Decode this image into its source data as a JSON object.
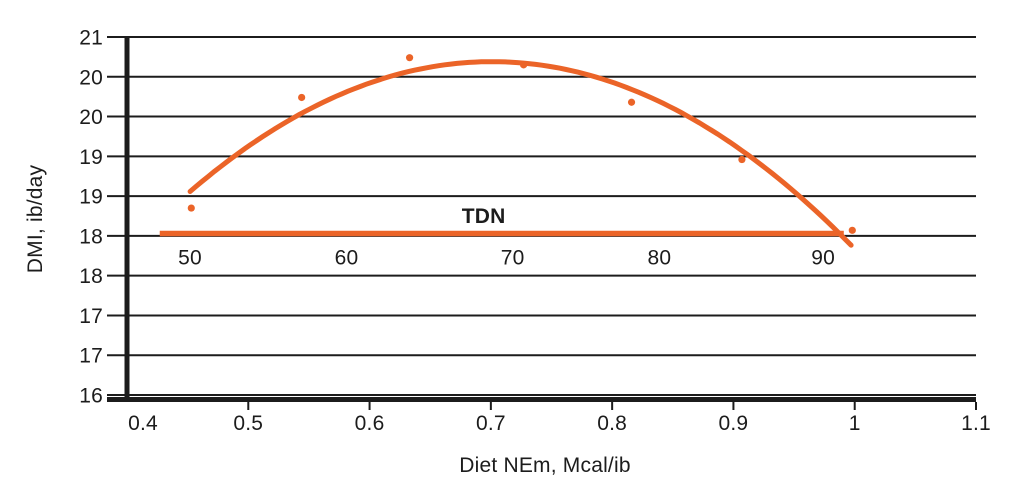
{
  "figure": {
    "background_color": "#ffffff",
    "accent_color": "#EB6428",
    "axis_color": "#1c1c1c",
    "y_axis": {
      "title": "DMI, ib/day",
      "tick_labels": [
        "21",
        "20",
        "20",
        "19",
        "19",
        "18",
        "18",
        "17",
        "17",
        "16"
      ],
      "tick_values": [
        21,
        20.5,
        20,
        19.5,
        19,
        18.5,
        18,
        17.5,
        17,
        16.5
      ]
    },
    "x_axis": {
      "title": "Diet NEm, Mcal/ib",
      "tick_labels": [
        "0.4",
        "0.5",
        "0.6",
        "0.7",
        "0.8",
        "0.9",
        "1",
        "1.1"
      ],
      "tick_values": [
        0.4,
        0.5,
        0.6,
        0.7,
        0.8,
        0.9,
        1,
        1.1
      ]
    }
  },
  "chart_data": {
    "type": "scatter",
    "title": "",
    "xlabel": "Diet NEm, Mcal/ib",
    "ylabel": "DMI, ib/day",
    "xlim": [
      0.4,
      1.1
    ],
    "ylim": [
      16.45,
      21
    ],
    "grid": "horizontal-only",
    "legend_position": "none",
    "y_tick_step": 0.5,
    "series": [
      {
        "name": "observed DMI points",
        "type": "scatter",
        "color": "#EB6428",
        "points": [
          {
            "x": 0.453,
            "y": 18.85
          },
          {
            "x": 0.544,
            "y": 20.24
          },
          {
            "x": 0.633,
            "y": 20.74
          },
          {
            "x": 0.727,
            "y": 20.65
          },
          {
            "x": 0.816,
            "y": 20.18
          },
          {
            "x": 0.907,
            "y": 19.46
          },
          {
            "x": 0.998,
            "y": 18.57
          }
        ]
      },
      {
        "name": "quadratic trend curve",
        "type": "line",
        "color": "#EB6428",
        "curve": {
          "form": "y = peak_y + a * (x - peak_x)^2",
          "peak_x": 0.701,
          "peak_y": 20.69,
          "a": -26.33,
          "x_start": 0.452,
          "x_end": 0.999
        }
      }
    ],
    "tdn_axis": {
      "label": "TDN",
      "line_y_dmi": 18.53,
      "line_x_start_nem": 0.427,
      "line_x_end_nem": 0.991,
      "tick_labels": [
        "50",
        "60",
        "70",
        "80",
        "90"
      ],
      "tick_x_nem": [
        0.452,
        0.581,
        0.718,
        0.839,
        0.974
      ],
      "label_x_nem": 0.694
    }
  }
}
